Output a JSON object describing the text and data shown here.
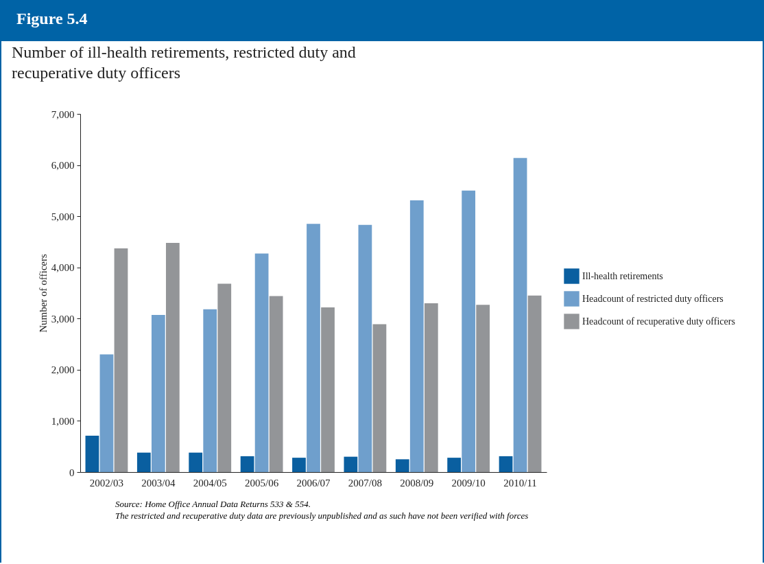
{
  "chart_data": {
    "type": "bar",
    "title": "Figure 5.4",
    "subtitle": "Number of ill-health retirements, restricted duty and recuperative duty officers",
    "ylabel": "Number of officers",
    "categories": [
      "2002/03",
      "2003/04",
      "2004/05",
      "2005/06",
      "2006/07",
      "2007/08",
      "2008/09",
      "2009/10",
      "2010/11"
    ],
    "series": [
      {
        "name": "Ill-health retirements",
        "color": "#0a5fa0",
        "values": [
          710,
          380,
          380,
          310,
          280,
          300,
          250,
          280,
          310
        ]
      },
      {
        "name": "Headcount of restricted duty officers",
        "color": "#6f9fcc",
        "values": [
          2300,
          3070,
          3180,
          4270,
          4850,
          4830,
          5310,
          5500,
          6140
        ]
      },
      {
        "name": "Headcount of recuperative duty officers",
        "color": "#939598",
        "values": [
          4370,
          4480,
          3680,
          3440,
          3220,
          2890,
          3300,
          3270,
          3450
        ]
      }
    ],
    "ylim": [
      0,
      7000
    ],
    "yticks": [
      0,
      {
        "value": 1000,
        "label": "1,000"
      },
      {
        "value": 2000,
        "label": "2,000"
      },
      {
        "value": 3000,
        "label": "3,000"
      },
      {
        "value": 4000,
        "label": "4,000"
      },
      {
        "value": 5000,
        "label": "5,000"
      },
      {
        "value": 6000,
        "label": "6,000"
      },
      {
        "value": 7000,
        "label": "7,000"
      }
    ],
    "grid": false,
    "legend": "right",
    "annotations": [
      "Source: Home Office Annual Data Returns 533 & 554.",
      "The restricted and recuperative duty data are previously unpublished and as such have not been verified with forces"
    ]
  }
}
